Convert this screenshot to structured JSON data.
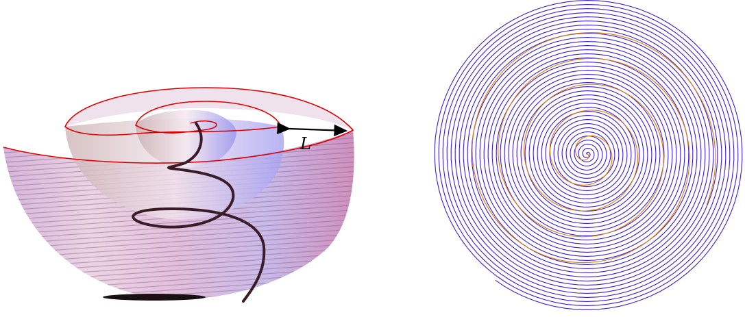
{
  "figure": {
    "left_panel": {
      "dimension_label": "L"
    },
    "colors": {
      "surface_light": "#f4e4ee",
      "surface_pink": "#d98cc0",
      "surface_purple": "#9a86d6",
      "surface_blue": "#b6b8f2",
      "spiral_edge": "#e00000",
      "helix_curve": "#3a1c28",
      "arrow": "#000000",
      "right_spiral_blue": "#3a1bd6",
      "right_spiral_orange": "#e2760e"
    },
    "right_panel": {
      "spiral_turns": 38
    }
  }
}
